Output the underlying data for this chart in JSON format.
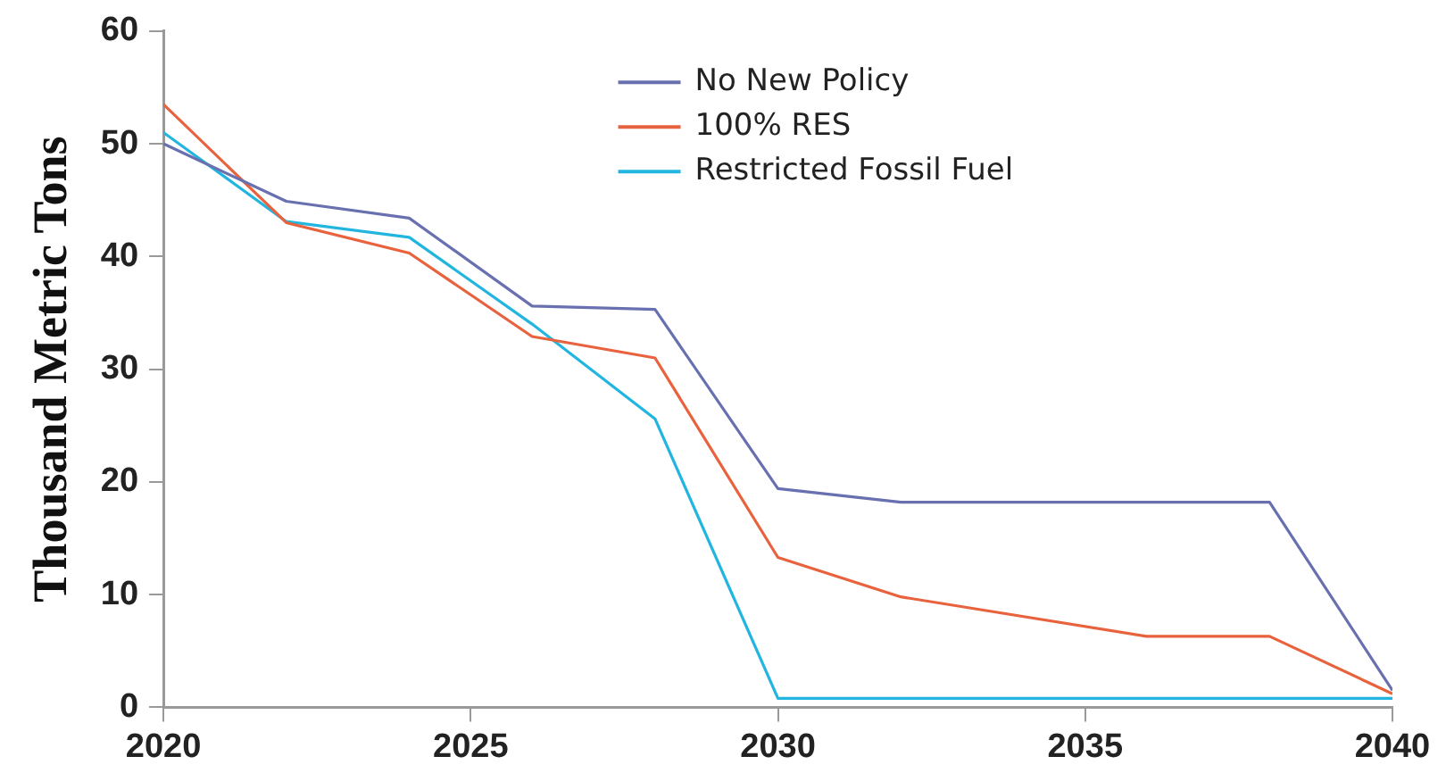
{
  "chart_data": {
    "type": "line",
    "ylabel": "Thousand Metric Tons",
    "xlim": [
      2020,
      2040
    ],
    "xticks": [
      2020,
      2025,
      2030,
      2035,
      2040
    ],
    "ylim": [
      0,
      60
    ],
    "yticks": [
      0,
      10,
      20,
      30,
      40,
      50,
      60
    ],
    "grid": false,
    "legend": "top",
    "marker": "none",
    "line_style": "solid",
    "series": [
      {
        "name": "No New Policy",
        "color": "#6870b0",
        "x": [
          2020,
          2022,
          2024,
          2026,
          2028,
          2030,
          2032,
          2038,
          2040
        ],
        "values": [
          50,
          44.9,
          43.4,
          35.6,
          35.3,
          19.4,
          18.2,
          18.2,
          1.5
        ]
      },
      {
        "name": "100% RES",
        "color": "#e8623e",
        "x": [
          2020,
          2022,
          2024,
          2026,
          2028,
          2030,
          2032,
          2036,
          2038,
          2040
        ],
        "values": [
          53.5,
          43,
          40.3,
          32.9,
          31,
          13.3,
          9.8,
          6.3,
          6.3,
          1.2
        ]
      },
      {
        "name": "Restricted Fossil Fuel",
        "color": "#22b5e0",
        "x": [
          2020,
          2022,
          2024,
          2026,
          2028,
          2030,
          2040
        ],
        "values": [
          51,
          43.1,
          41.7,
          34,
          25.6,
          0.8,
          0.8
        ]
      }
    ]
  }
}
